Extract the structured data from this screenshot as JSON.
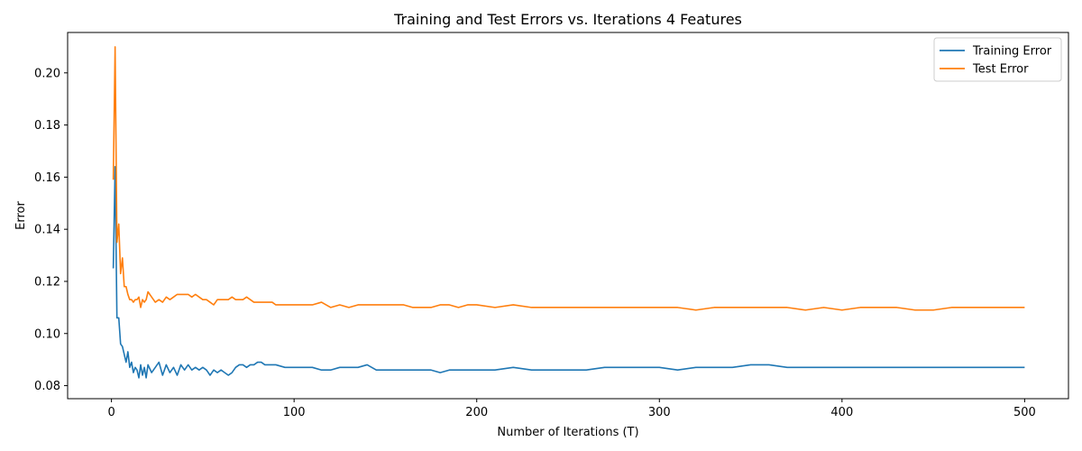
{
  "chart_data": {
    "type": "line",
    "title": "Training and Test Errors vs. Iterations 4 Features",
    "xlabel": "Number of Iterations (T)",
    "ylabel": "Error",
    "xlim": [
      -24,
      524
    ],
    "ylim": [
      0.075,
      0.2155
    ],
    "xticks": [
      0,
      100,
      200,
      300,
      400,
      500
    ],
    "yticks": [
      0.08,
      0.1,
      0.12,
      0.14,
      0.16,
      0.18,
      0.2
    ],
    "ytick_labels": [
      "0.08",
      "0.10",
      "0.12",
      "0.14",
      "0.16",
      "0.18",
      "0.20"
    ],
    "grid": false,
    "legend_position": "upper right",
    "series": [
      {
        "name": "Training Error",
        "color": "#1f77b4",
        "x": [
          1,
          2,
          3,
          4,
          5,
          6,
          7,
          8,
          9,
          10,
          11,
          12,
          13,
          14,
          15,
          16,
          17,
          18,
          19,
          20,
          22,
          24,
          26,
          28,
          30,
          32,
          34,
          36,
          38,
          40,
          42,
          44,
          46,
          48,
          50,
          52,
          54,
          56,
          58,
          60,
          62,
          64,
          66,
          68,
          70,
          72,
          74,
          76,
          78,
          80,
          82,
          84,
          86,
          88,
          90,
          95,
          100,
          105,
          110,
          115,
          120,
          125,
          130,
          135,
          140,
          145,
          150,
          155,
          160,
          165,
          170,
          175,
          180,
          185,
          190,
          195,
          200,
          210,
          220,
          230,
          240,
          250,
          260,
          270,
          280,
          290,
          300,
          310,
          320,
          330,
          340,
          350,
          360,
          370,
          380,
          390,
          400,
          410,
          420,
          430,
          440,
          450,
          460,
          470,
          480,
          490,
          500
        ],
        "values": [
          0.125,
          0.164,
          0.106,
          0.106,
          0.096,
          0.095,
          0.092,
          0.089,
          0.093,
          0.087,
          0.089,
          0.085,
          0.087,
          0.086,
          0.083,
          0.088,
          0.084,
          0.087,
          0.083,
          0.088,
          0.085,
          0.087,
          0.089,
          0.084,
          0.088,
          0.085,
          0.087,
          0.084,
          0.088,
          0.086,
          0.088,
          0.086,
          0.087,
          0.086,
          0.087,
          0.086,
          0.084,
          0.086,
          0.085,
          0.086,
          0.085,
          0.084,
          0.085,
          0.087,
          0.088,
          0.088,
          0.087,
          0.088,
          0.088,
          0.089,
          0.089,
          0.088,
          0.088,
          0.088,
          0.088,
          0.087,
          0.087,
          0.087,
          0.087,
          0.086,
          0.086,
          0.087,
          0.087,
          0.087,
          0.088,
          0.086,
          0.086,
          0.086,
          0.086,
          0.086,
          0.086,
          0.086,
          0.085,
          0.086,
          0.086,
          0.086,
          0.086,
          0.086,
          0.087,
          0.086,
          0.086,
          0.086,
          0.086,
          0.087,
          0.087,
          0.087,
          0.087,
          0.086,
          0.087,
          0.087,
          0.087,
          0.088,
          0.088,
          0.087,
          0.087,
          0.087,
          0.087,
          0.087,
          0.087,
          0.087,
          0.087,
          0.087,
          0.087,
          0.087,
          0.087,
          0.087,
          0.087
        ]
      },
      {
        "name": "Test Error",
        "color": "#ff7f0e",
        "x": [
          1,
          2,
          3,
          4,
          5,
          6,
          7,
          8,
          9,
          10,
          11,
          12,
          13,
          14,
          15,
          16,
          17,
          18,
          19,
          20,
          22,
          24,
          26,
          28,
          30,
          32,
          34,
          36,
          38,
          40,
          42,
          44,
          46,
          48,
          50,
          52,
          54,
          56,
          58,
          60,
          62,
          64,
          66,
          68,
          70,
          72,
          74,
          76,
          78,
          80,
          82,
          84,
          86,
          88,
          90,
          95,
          100,
          105,
          110,
          115,
          120,
          125,
          130,
          135,
          140,
          145,
          150,
          155,
          160,
          165,
          170,
          175,
          180,
          185,
          190,
          195,
          200,
          210,
          220,
          230,
          240,
          250,
          260,
          270,
          280,
          290,
          300,
          310,
          320,
          330,
          340,
          350,
          360,
          370,
          380,
          390,
          400,
          410,
          420,
          430,
          440,
          450,
          460,
          470,
          480,
          490,
          500
        ],
        "values": [
          0.159,
          0.21,
          0.135,
          0.142,
          0.123,
          0.129,
          0.118,
          0.118,
          0.115,
          0.113,
          0.113,
          0.112,
          0.113,
          0.113,
          0.114,
          0.11,
          0.113,
          0.112,
          0.113,
          0.116,
          0.114,
          0.112,
          0.113,
          0.112,
          0.114,
          0.113,
          0.114,
          0.115,
          0.115,
          0.115,
          0.115,
          0.114,
          0.115,
          0.114,
          0.113,
          0.113,
          0.112,
          0.111,
          0.113,
          0.113,
          0.113,
          0.113,
          0.114,
          0.113,
          0.113,
          0.113,
          0.114,
          0.113,
          0.112,
          0.112,
          0.112,
          0.112,
          0.112,
          0.112,
          0.111,
          0.111,
          0.111,
          0.111,
          0.111,
          0.112,
          0.11,
          0.111,
          0.11,
          0.111,
          0.111,
          0.111,
          0.111,
          0.111,
          0.111,
          0.11,
          0.11,
          0.11,
          0.111,
          0.111,
          0.11,
          0.111,
          0.111,
          0.11,
          0.111,
          0.11,
          0.11,
          0.11,
          0.11,
          0.11,
          0.11,
          0.11,
          0.11,
          0.11,
          0.109,
          0.11,
          0.11,
          0.11,
          0.11,
          0.11,
          0.109,
          0.11,
          0.109,
          0.11,
          0.11,
          0.11,
          0.109,
          0.109,
          0.11,
          0.11,
          0.11,
          0.11,
          0.11
        ]
      }
    ]
  }
}
